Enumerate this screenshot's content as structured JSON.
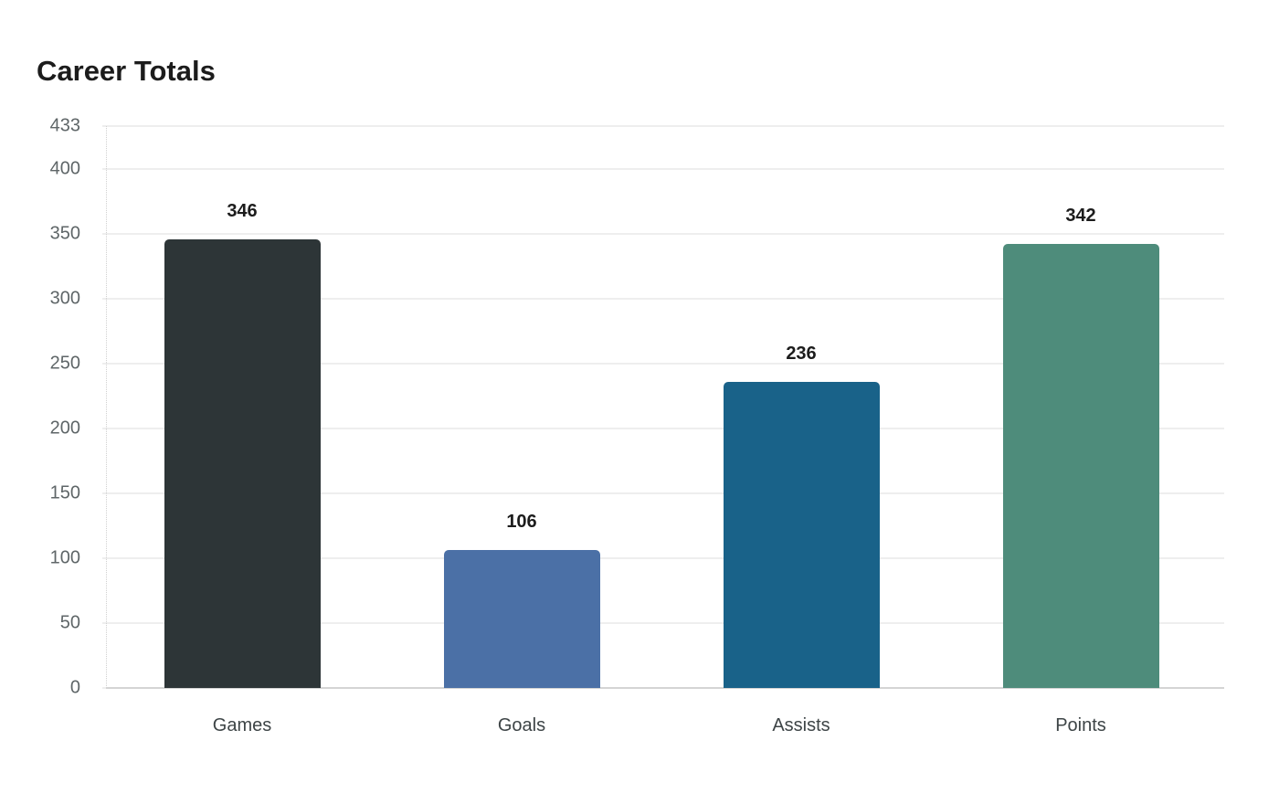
{
  "chart_data": {
    "type": "bar",
    "title": "Career Totals",
    "xlabel": "",
    "ylabel": "",
    "categories": [
      "Games",
      "Goals",
      "Assists",
      "Points"
    ],
    "values": [
      346,
      106,
      236,
      342
    ],
    "colors": [
      "#2d3537",
      "#4b70a6",
      "#196289",
      "#4e8c7b"
    ],
    "ylim": [
      0,
      433
    ],
    "yticks": [
      0,
      50,
      100,
      150,
      200,
      250,
      300,
      350,
      400,
      433
    ],
    "grid": true,
    "legend": null,
    "data_labels": true
  }
}
